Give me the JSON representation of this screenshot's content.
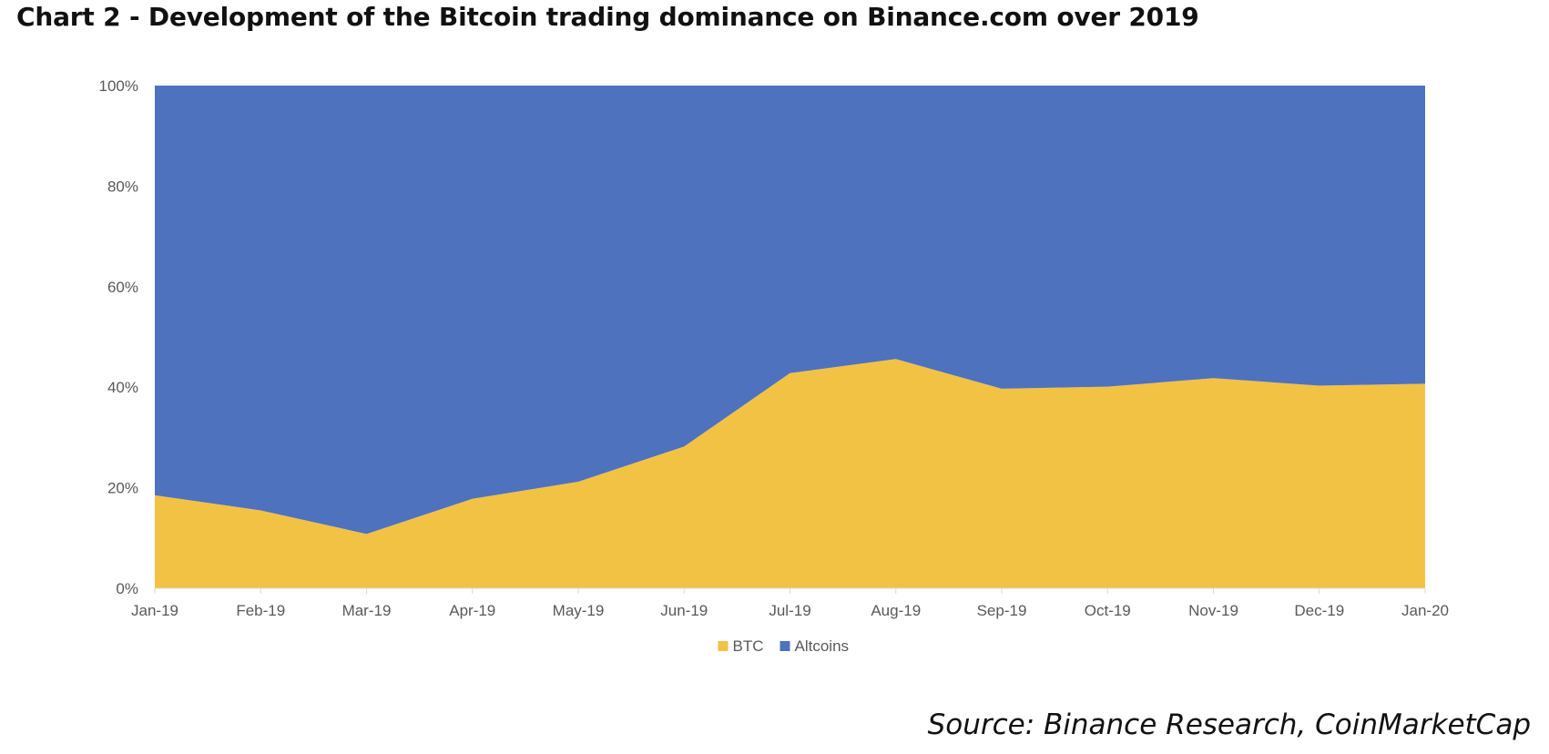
{
  "title": "Chart 2 - Development of the Bitcoin trading dominance on Binance.com over 2019",
  "source": "Source: Binance Research, CoinMarketCap",
  "chart_data": {
    "type": "area",
    "stacked": true,
    "normalized": true,
    "title": "Chart 2 - Development of the Bitcoin trading dominance on Binance.com over 2019",
    "xlabel": "",
    "ylabel": "",
    "ylim": [
      0,
      100
    ],
    "yticks": [
      0,
      20,
      40,
      60,
      80,
      100
    ],
    "ytick_labels": [
      "0%",
      "20%",
      "40%",
      "60%",
      "80%",
      "100%"
    ],
    "categories": [
      "Jan-19",
      "Feb-19",
      "Mar-19",
      "Apr-19",
      "May-19",
      "Jun-19",
      "Jul-19",
      "Aug-19",
      "Sep-19",
      "Oct-19",
      "Nov-19",
      "Dec-19",
      "Jan-20"
    ],
    "series": [
      {
        "name": "BTC",
        "color": "#F2C244",
        "values": [
          18.5,
          15.5,
          10.8,
          17.8,
          21.2,
          28.2,
          42.8,
          45.6,
          39.7,
          40.1,
          41.8,
          40.3,
          40.7
        ]
      },
      {
        "name": "Altcoins",
        "color": "#4F72BE",
        "values": [
          81.5,
          84.5,
          89.2,
          82.2,
          78.8,
          71.8,
          57.2,
          54.4,
          60.3,
          59.9,
          58.2,
          59.7,
          59.3
        ]
      }
    ],
    "grid": false,
    "legend": "bottom-center"
  }
}
